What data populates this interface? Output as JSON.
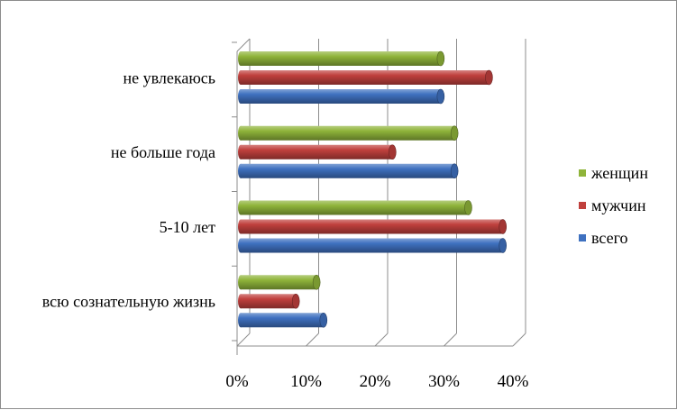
{
  "chart_data": {
    "type": "bar",
    "orientation": "horizontal",
    "style": "3d-cylinder",
    "categories": [
      "не увлекаюсь",
      "не больше года",
      "5-10 лет",
      "всю сознательную жизнь"
    ],
    "series": [
      {
        "name": "женщин",
        "color": "#8fb43a",
        "values": [
          29,
          31,
          33,
          11
        ]
      },
      {
        "name": "мужчин",
        "color": "#c0403d",
        "values": [
          36,
          22,
          38,
          8
        ]
      },
      {
        "name": "всего",
        "color": "#3f71c0",
        "values": [
          29,
          31,
          38,
          12
        ]
      }
    ],
    "xlim": [
      0,
      40
    ],
    "x_ticks": [
      "0%",
      "10%",
      "20%",
      "30%",
      "40%"
    ],
    "grid": true,
    "legend_position": "right"
  }
}
